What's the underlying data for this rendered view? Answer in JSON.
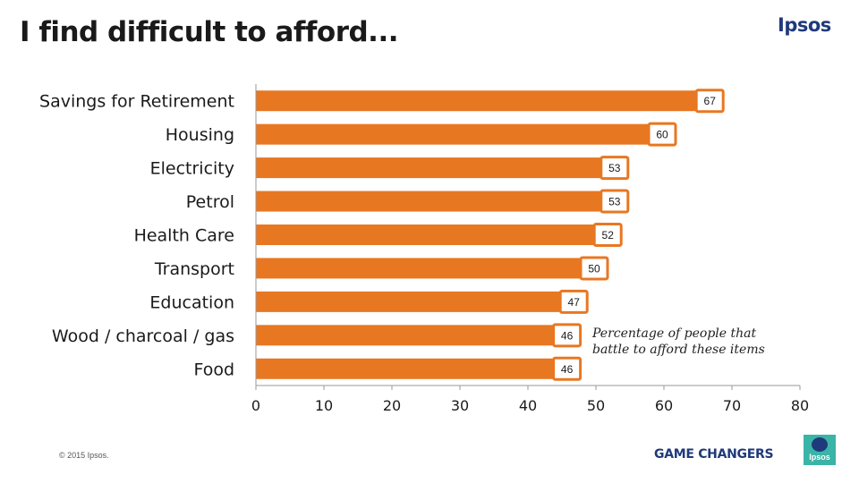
{
  "header": {
    "title": "I find difficult to afford...",
    "brand": "Ipsos"
  },
  "chart_data": {
    "type": "bar",
    "orientation": "horizontal",
    "title": "I find difficult to afford...",
    "categories": [
      "Savings for Retirement",
      "Housing",
      "Electricity",
      "Petrol",
      "Health Care",
      "Transport",
      "Education",
      "Wood / charcoal / gas",
      "Food"
    ],
    "values": [
      67,
      60,
      53,
      53,
      52,
      50,
      47,
      46,
      46
    ],
    "xlim": [
      0,
      80
    ],
    "xticks": [
      0,
      10,
      20,
      30,
      40,
      50,
      60,
      70,
      80
    ],
    "grid": false,
    "bar_color": "#e87722",
    "label_border_color": "#e87722",
    "annotation": [
      "Percentage of people that",
      "battle to afford these items"
    ]
  },
  "footer": {
    "copyright": "© 2015 Ipsos.",
    "tagline": "GAME CHANGERS",
    "logo_text": "Ipsos",
    "logo_color": "#3bb4a8",
    "brand_color": "#1f3a7a"
  }
}
